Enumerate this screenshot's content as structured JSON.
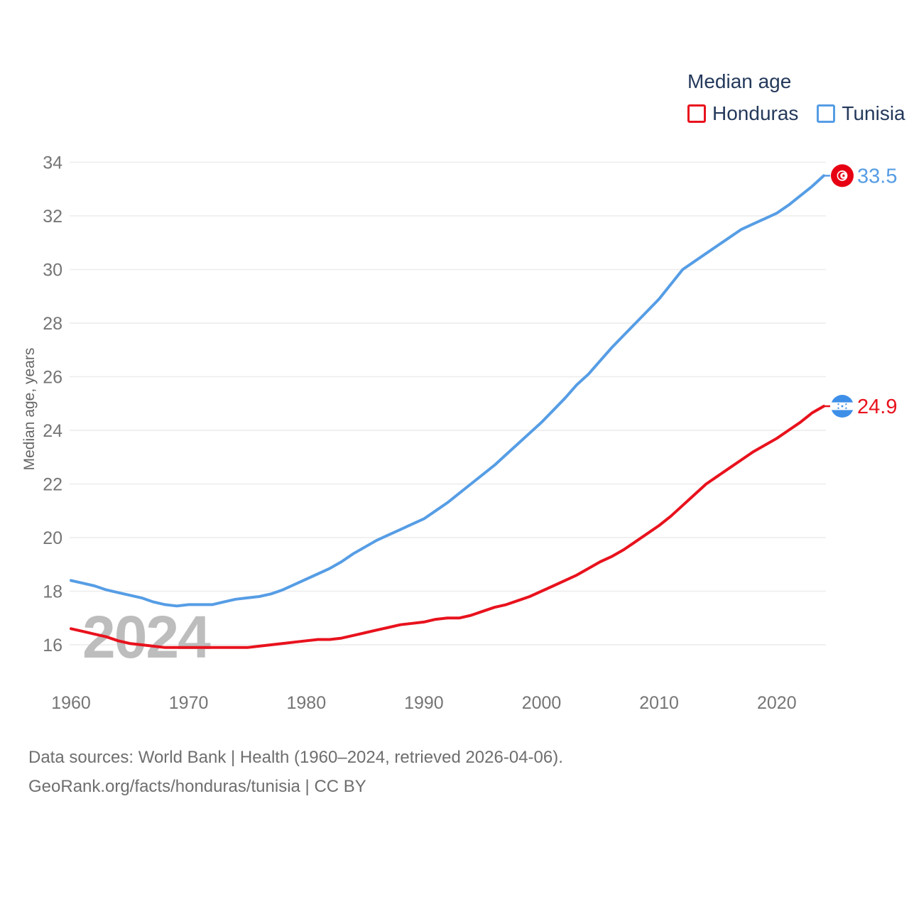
{
  "legend": {
    "title": "Median age",
    "items": [
      {
        "label": "Honduras",
        "color": "#e8121d"
      },
      {
        "label": "Tunisia",
        "color": "#569de5"
      }
    ]
  },
  "watermark": "2024",
  "footer": {
    "line1": "Data sources: World Bank | Health (1960–2024, retrieved 2026-04-06).",
    "line2": "GeoRank.org/facts/honduras/tunisia | CC BY"
  },
  "flag_colors": {
    "tunisia": "#e70013",
    "honduras": "#3d8fe8"
  },
  "chart_data": {
    "type": "line",
    "title": "Median age",
    "xlabel": "",
    "ylabel": "Median age, years",
    "x_start": 1960,
    "x_end": 2024,
    "x_step": 1,
    "xticks": [
      1960,
      1970,
      1980,
      1990,
      2000,
      2010,
      2020
    ],
    "yticks": [
      16,
      18,
      20,
      22,
      24,
      26,
      28,
      30,
      32,
      34
    ],
    "ylim": [
      15.5,
      34.5
    ],
    "grid": "horizontal-only",
    "legend_position": "top-right",
    "series": [
      {
        "name": "Honduras",
        "color": "#e8121d",
        "flag": "honduras",
        "end_label": "24.9",
        "values": [
          16.6,
          16.5,
          16.4,
          16.3,
          16.15,
          16.05,
          16.0,
          15.95,
          15.9,
          15.9,
          15.9,
          15.9,
          15.9,
          15.9,
          15.9,
          15.9,
          15.95,
          16.0,
          16.05,
          16.1,
          16.15,
          16.2,
          16.2,
          16.25,
          16.35,
          16.45,
          16.55,
          16.65,
          16.75,
          16.8,
          16.85,
          16.95,
          17.0,
          17.0,
          17.1,
          17.25,
          17.4,
          17.5,
          17.65,
          17.8,
          18.0,
          18.2,
          18.4,
          18.6,
          18.85,
          19.1,
          19.3,
          19.55,
          19.85,
          20.15,
          20.45,
          20.8,
          21.2,
          21.6,
          22.0,
          22.3,
          22.6,
          22.9,
          23.2,
          23.45,
          23.7,
          24.0,
          24.3,
          24.65,
          24.9
        ]
      },
      {
        "name": "Tunisia",
        "color": "#569de5",
        "flag": "tunisia",
        "end_label": "33.5",
        "values": [
          18.4,
          18.3,
          18.2,
          18.05,
          17.95,
          17.85,
          17.75,
          17.6,
          17.5,
          17.45,
          17.5,
          17.5,
          17.5,
          17.6,
          17.7,
          17.75,
          17.8,
          17.9,
          18.05,
          18.25,
          18.45,
          18.65,
          18.85,
          19.1,
          19.4,
          19.65,
          19.9,
          20.1,
          20.3,
          20.5,
          20.7,
          21.0,
          21.3,
          21.65,
          22.0,
          22.35,
          22.7,
          23.1,
          23.5,
          23.9,
          24.3,
          24.75,
          25.2,
          25.7,
          26.1,
          26.6,
          27.1,
          27.55,
          28.0,
          28.45,
          28.9,
          29.45,
          30.0,
          30.3,
          30.6,
          30.9,
          31.2,
          31.5,
          31.7,
          31.9,
          32.1,
          32.4,
          32.75,
          33.1,
          33.5
        ]
      }
    ]
  }
}
